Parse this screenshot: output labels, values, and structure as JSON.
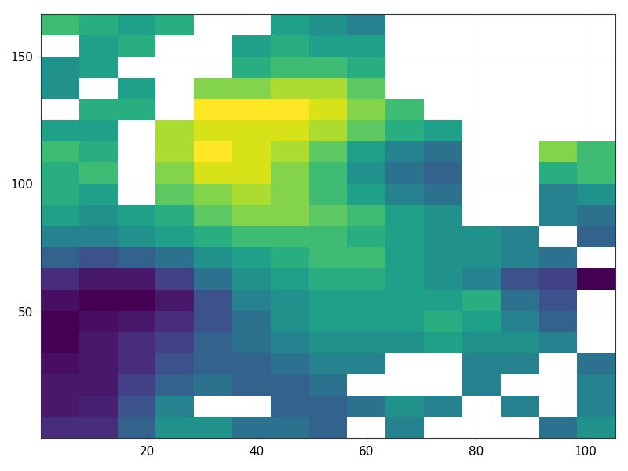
{
  "chart_data": {
    "type": "heatmap",
    "color": "viridis",
    "grid": true,
    "xlim": [
      0.5,
      105.5
    ],
    "ylim": [
      0.5,
      166.5
    ],
    "xticks": [
      20,
      40,
      60,
      80,
      100
    ],
    "yticks": [
      50,
      100,
      150
    ],
    "x_edges": [
      0.5,
      7.5,
      14.5,
      21.5,
      28.5,
      35.5,
      42.5,
      49.5,
      56.5,
      63.5,
      70.5,
      77.5,
      84.5,
      91.5,
      98.5,
      105.5
    ],
    "y_edges": [
      0.5,
      8.8,
      17.1,
      25.4,
      33.7,
      42.0,
      50.3,
      58.6,
      66.9,
      75.2,
      83.5,
      91.8,
      100.1,
      108.4,
      116.7,
      125.0,
      133.3,
      141.6,
      149.9,
      158.2,
      166.5
    ],
    "cells": [
      [
        0.15,
        0.15,
        0.3,
        0.45,
        0.45,
        0.35,
        0.35,
        0.3,
        null,
        0.4,
        null,
        null,
        null,
        0.35,
        0.45
      ],
      [
        0.1,
        0.12,
        0.25,
        0.4,
        null,
        null,
        0.3,
        0.3,
        0.35,
        0.45,
        0.4,
        null,
        0.4,
        null,
        0.4
      ],
      [
        0.1,
        0.1,
        0.2,
        0.3,
        0.35,
        0.3,
        0.3,
        0.35,
        null,
        null,
        null,
        0.4,
        null,
        null,
        0.4
      ],
      [
        0.08,
        0.1,
        0.15,
        0.25,
        0.3,
        0.3,
        0.35,
        0.4,
        0.4,
        null,
        null,
        0.4,
        0.4,
        null,
        0.35
      ],
      [
        0.05,
        0.1,
        0.15,
        0.2,
        0.3,
        0.35,
        0.4,
        0.45,
        0.45,
        0.45,
        0.5,
        0.45,
        0.45,
        0.4,
        null
      ],
      [
        0.05,
        0.08,
        0.1,
        0.15,
        0.25,
        0.35,
        0.45,
        0.5,
        0.5,
        0.5,
        0.55,
        0.5,
        0.4,
        0.3,
        null
      ],
      [
        0.08,
        0.05,
        0.05,
        0.1,
        0.25,
        0.4,
        0.45,
        0.5,
        0.5,
        0.5,
        0.5,
        0.55,
        0.35,
        0.25,
        null
      ],
      [
        0.15,
        0.1,
        0.1,
        0.2,
        0.35,
        0.45,
        0.5,
        0.55,
        0.55,
        0.5,
        0.45,
        0.4,
        0.25,
        0.2,
        0.05
      ],
      [
        0.3,
        0.25,
        0.3,
        0.35,
        0.45,
        0.5,
        0.55,
        0.6,
        0.6,
        0.5,
        0.45,
        0.45,
        0.4,
        0.35,
        null
      ],
      [
        0.4,
        0.4,
        0.45,
        0.5,
        0.55,
        0.6,
        0.6,
        0.6,
        0.55,
        0.5,
        0.45,
        0.45,
        0.4,
        null,
        0.3
      ],
      [
        0.5,
        0.45,
        0.5,
        0.55,
        0.65,
        0.7,
        0.7,
        0.65,
        0.6,
        0.5,
        0.45,
        null,
        null,
        0.4,
        0.35
      ],
      [
        0.55,
        0.5,
        null,
        0.65,
        0.7,
        0.75,
        0.7,
        0.6,
        0.5,
        0.4,
        0.35,
        null,
        null,
        0.4,
        0.45
      ],
      [
        0.55,
        0.6,
        null,
        0.7,
        0.8,
        0.8,
        0.7,
        0.6,
        0.45,
        0.35,
        0.3,
        null,
        null,
        0.55,
        0.6
      ],
      [
        0.6,
        0.55,
        null,
        0.75,
        0.85,
        0.8,
        0.75,
        0.65,
        0.5,
        0.4,
        0.35,
        null,
        null,
        0.7,
        0.6
      ],
      [
        0.5,
        0.5,
        null,
        0.75,
        0.8,
        0.8,
        0.8,
        0.75,
        0.65,
        0.55,
        0.5,
        null,
        null,
        null,
        null
      ],
      [
        null,
        0.55,
        0.55,
        null,
        0.85,
        0.85,
        0.85,
        0.8,
        0.7,
        0.6,
        null,
        null,
        null,
        null,
        null
      ],
      [
        0.45,
        null,
        0.5,
        null,
        0.7,
        0.7,
        0.75,
        0.75,
        0.65,
        null,
        null,
        null,
        null,
        null,
        null
      ],
      [
        0.45,
        0.5,
        null,
        null,
        null,
        0.55,
        0.6,
        0.6,
        0.55,
        null,
        null,
        null,
        null,
        null,
        null
      ],
      [
        null,
        0.5,
        0.55,
        null,
        null,
        0.5,
        0.55,
        0.5,
        0.5,
        null,
        null,
        null,
        null,
        null,
        null
      ],
      [
        0.6,
        0.55,
        0.5,
        0.55,
        null,
        null,
        0.5,
        0.45,
        0.4,
        null,
        null,
        null,
        null,
        null,
        null
      ]
    ]
  }
}
